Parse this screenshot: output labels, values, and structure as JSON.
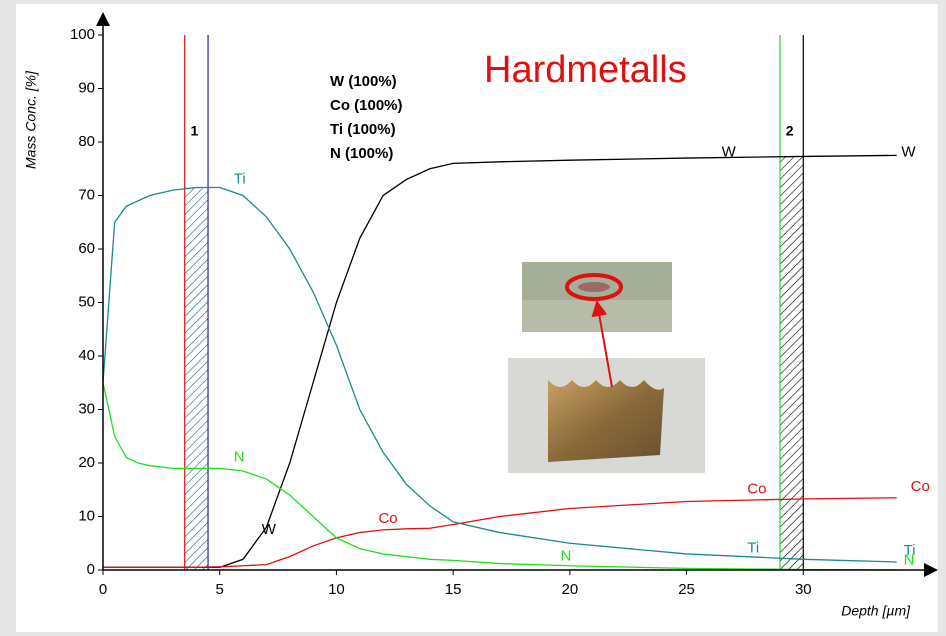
{
  "chart_data": {
    "type": "line",
    "title": "Hardmetalls",
    "legend_text": [
      "W (100%)",
      "Co (100%)",
      "Ti (100%)",
      "N (100%)"
    ],
    "x_label": "Depth [µm]",
    "y_label": "Mass Conc. [%]",
    "x": [
      0,
      0.5,
      1,
      1.5,
      2,
      3,
      4,
      5,
      6,
      7,
      8,
      9,
      10,
      11,
      12,
      13,
      14,
      15,
      17,
      20,
      25,
      30,
      34
    ],
    "series": [
      {
        "name": "W",
        "color": "#000000",
        "values": [
          0.5,
          0.5,
          0.5,
          0.5,
          0.5,
          0.5,
          0.5,
          0.5,
          2,
          8,
          20,
          35,
          50,
          62,
          70,
          73,
          75,
          76,
          76.3,
          76.6,
          77,
          77.3,
          77.5
        ]
      },
      {
        "name": "Co",
        "color": "#e01010",
        "values": [
          0.5,
          0.5,
          0.5,
          0.5,
          0.5,
          0.5,
          0.5,
          0.6,
          0.8,
          1,
          2.5,
          4.5,
          6,
          7,
          7.5,
          7.7,
          7.8,
          8.5,
          10,
          11.5,
          12.8,
          13.3,
          13.5
        ]
      },
      {
        "name": "Ti",
        "color": "#1a8a8a",
        "values": [
          35,
          65,
          68,
          69,
          70,
          71,
          71.5,
          71.5,
          70,
          66,
          60,
          52,
          42,
          30,
          22,
          16,
          12,
          9,
          7,
          5,
          3,
          2,
          1.5
        ]
      },
      {
        "name": "N",
        "color": "#22dd22",
        "values": [
          35,
          25,
          21,
          20,
          19.5,
          19,
          19,
          19,
          18.5,
          17,
          14,
          10,
          6,
          4,
          3,
          2.5,
          2,
          1.8,
          1.2,
          0.8,
          0.3,
          0.1,
          0
        ]
      }
    ],
    "regions": [
      {
        "label": "1",
        "from": 3.5,
        "to": 4.5,
        "left_color": "#e01010",
        "right_color": "#2020b0",
        "hatch_color": "#1a5a8a"
      },
      {
        "label": "2",
        "from": 29,
        "to": 30,
        "left_color": "#22dd22",
        "right_color": "#000000",
        "hatch_color": "#000000"
      }
    ],
    "annotations": [
      {
        "text": "W",
        "x": 26.5,
        "y": 78,
        "color": "#000000"
      },
      {
        "text": "W",
        "x": 34.2,
        "y": 78,
        "color": "#000000"
      },
      {
        "text": "W",
        "x": 6.8,
        "y": 7.5,
        "color": "#000000"
      },
      {
        "text": "Ti",
        "x": 5.6,
        "y": 73,
        "color": "#1a8a8a"
      },
      {
        "text": "Ti",
        "x": 27.6,
        "y": 4,
        "color": "#1a8a8a"
      },
      {
        "text": "Ti",
        "x": 34.3,
        "y": 3.5,
        "color": "#1a8a8a"
      },
      {
        "text": "N",
        "x": 5.6,
        "y": 21,
        "color": "#22dd22"
      },
      {
        "text": "N",
        "x": 19.6,
        "y": 2.5,
        "color": "#22dd22"
      },
      {
        "text": "N",
        "x": 34.3,
        "y": 1.8,
        "color": "#22dd22"
      },
      {
        "text": "Co",
        "x": 11.8,
        "y": 9.5,
        "color": "#e01010"
      },
      {
        "text": "Co",
        "x": 27.6,
        "y": 15,
        "color": "#e01010"
      },
      {
        "text": "Co",
        "x": 34.6,
        "y": 15.5,
        "color": "#e01010"
      }
    ],
    "xlim": [
      0,
      35
    ],
    "ylim": [
      0,
      100
    ],
    "xticks": [
      0,
      5,
      10,
      15,
      20,
      25,
      30
    ],
    "yticks": [
      0,
      10,
      20,
      30,
      40,
      50,
      60,
      70,
      80,
      90,
      100
    ]
  }
}
